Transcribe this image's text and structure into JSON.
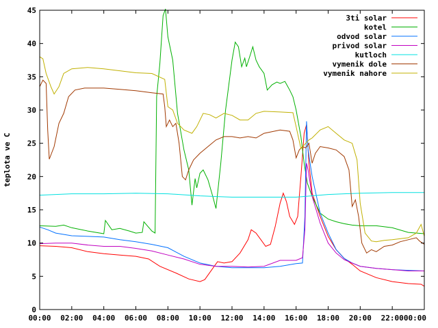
{
  "chart_data": {
    "type": "line",
    "title": "",
    "xlabel": "",
    "ylabel": "teplota ve C",
    "xlim": [
      0,
      24
    ],
    "ylim": [
      0,
      45
    ],
    "x_tick_values": [
      0,
      2,
      4,
      6,
      8,
      10,
      12,
      14,
      16,
      18,
      20,
      22,
      24
    ],
    "x_tick_labels": [
      "00:00",
      "02:00",
      "04:00",
      "06:00",
      "08:00",
      "10:00",
      "12:00",
      "14:00",
      "16:00",
      "18:00",
      "20:00",
      "22:00",
      "00:00"
    ],
    "y_tick_values": [
      0,
      5,
      10,
      15,
      20,
      25,
      30,
      35,
      40,
      45
    ],
    "y_tick_labels": [
      "0",
      "5",
      "10",
      "15",
      "20",
      "25",
      "30",
      "35",
      "40",
      "45"
    ],
    "grid": false,
    "legend_position": "top-right",
    "series": [
      {
        "name": "3ti solar",
        "color": "#ff0000",
        "points": [
          [
            0,
            9.6
          ],
          [
            1,
            9.5
          ],
          [
            2,
            9.3
          ],
          [
            3,
            8.7
          ],
          [
            4,
            8.4
          ],
          [
            5,
            8.2
          ],
          [
            6,
            8.0
          ],
          [
            6.8,
            7.6
          ],
          [
            7.5,
            6.5
          ],
          [
            8.5,
            5.5
          ],
          [
            9.3,
            4.6
          ],
          [
            10,
            4.2
          ],
          [
            10.3,
            4.5
          ],
          [
            10.8,
            6.2
          ],
          [
            11.1,
            7.2
          ],
          [
            11.5,
            7.0
          ],
          [
            12,
            7.2
          ],
          [
            12.5,
            8.5
          ],
          [
            13,
            10.5
          ],
          [
            13.2,
            12.0
          ],
          [
            13.5,
            11.5
          ],
          [
            13.8,
            10.5
          ],
          [
            14.1,
            9.5
          ],
          [
            14.4,
            9.8
          ],
          [
            14.7,
            12.5
          ],
          [
            15,
            16.0
          ],
          [
            15.2,
            17.5
          ],
          [
            15.4,
            16.2
          ],
          [
            15.6,
            14.0
          ],
          [
            15.9,
            12.8
          ],
          [
            16.1,
            14.0
          ],
          [
            16.3,
            20.0
          ],
          [
            16.5,
            26.5
          ],
          [
            16.65,
            27.8
          ],
          [
            16.8,
            22.0
          ],
          [
            17,
            17.5
          ],
          [
            17.5,
            14.0
          ],
          [
            18,
            11.0
          ],
          [
            18.5,
            9.0
          ],
          [
            19,
            7.7
          ],
          [
            19.5,
            6.8
          ],
          [
            20,
            5.8
          ],
          [
            21,
            4.8
          ],
          [
            22,
            4.2
          ],
          [
            23,
            3.9
          ],
          [
            23.8,
            3.8
          ],
          [
            24,
            3.5
          ]
        ]
      },
      {
        "name": "kotel",
        "color": "#00b000",
        "points": [
          [
            0,
            12.6
          ],
          [
            1,
            12.5
          ],
          [
            1.5,
            12.7
          ],
          [
            2,
            12.3
          ],
          [
            3,
            11.8
          ],
          [
            4,
            11.4
          ],
          [
            4.1,
            13.4
          ],
          [
            4.5,
            12.0
          ],
          [
            5,
            12.2
          ],
          [
            5.6,
            11.8
          ],
          [
            6,
            11.5
          ],
          [
            6.4,
            11.6
          ],
          [
            6.5,
            13.2
          ],
          [
            7,
            11.8
          ],
          [
            7.2,
            11.5
          ],
          [
            7.3,
            32.0
          ],
          [
            7.5,
            37.0
          ],
          [
            7.7,
            44.2
          ],
          [
            7.85,
            45.2
          ],
          [
            8,
            41.0
          ],
          [
            8.3,
            37.5
          ],
          [
            8.6,
            29.5
          ],
          [
            9,
            24.0
          ],
          [
            9.3,
            21.0
          ],
          [
            9.5,
            15.7
          ],
          [
            9.7,
            19.7
          ],
          [
            9.8,
            18.3
          ],
          [
            10,
            20.5
          ],
          [
            10.2,
            21.0
          ],
          [
            10.5,
            19.5
          ],
          [
            10.8,
            17.0
          ],
          [
            11,
            15.2
          ],
          [
            11.3,
            22.0
          ],
          [
            11.6,
            30.0
          ],
          [
            12,
            37.5
          ],
          [
            12.2,
            40.2
          ],
          [
            12.4,
            39.5
          ],
          [
            12.6,
            36.5
          ],
          [
            12.8,
            37.8
          ],
          [
            12.9,
            36.5
          ],
          [
            13.1,
            38.0
          ],
          [
            13.3,
            39.5
          ],
          [
            13.5,
            37.5
          ],
          [
            13.7,
            36.5
          ],
          [
            14,
            35.5
          ],
          [
            14.2,
            33.0
          ],
          [
            14.5,
            33.8
          ],
          [
            14.8,
            34.2
          ],
          [
            15,
            34.0
          ],
          [
            15.3,
            34.3
          ],
          [
            15.6,
            33.0
          ],
          [
            15.8,
            32.0
          ],
          [
            16,
            30.0
          ],
          [
            16.3,
            26.0
          ],
          [
            16.5,
            22.0
          ],
          [
            16.7,
            19.0
          ],
          [
            17,
            17.0
          ],
          [
            17.5,
            14.5
          ],
          [
            18,
            13.6
          ],
          [
            18.5,
            13.2
          ],
          [
            19,
            12.9
          ],
          [
            19.5,
            12.7
          ],
          [
            20,
            12.6
          ],
          [
            21,
            12.6
          ],
          [
            22,
            12.3
          ],
          [
            23,
            11.6
          ],
          [
            24,
            11.4
          ]
        ]
      },
      {
        "name": "odvod solar",
        "color": "#0070ff",
        "points": [
          [
            0,
            12.4
          ],
          [
            0.5,
            12.0
          ],
          [
            1,
            11.5
          ],
          [
            2,
            11.1
          ],
          [
            3,
            11.0
          ],
          [
            4,
            10.9
          ],
          [
            5,
            10.5
          ],
          [
            6,
            10.2
          ],
          [
            7,
            9.8
          ],
          [
            8,
            9.3
          ],
          [
            9,
            8.0
          ],
          [
            10,
            7.0
          ],
          [
            11,
            6.5
          ],
          [
            12,
            6.3
          ],
          [
            13,
            6.3
          ],
          [
            14,
            6.3
          ],
          [
            15,
            6.5
          ],
          [
            16,
            6.9
          ],
          [
            16.4,
            7.0
          ],
          [
            16.55,
            14.0
          ],
          [
            16.65,
            28.3
          ],
          [
            16.75,
            24.0
          ],
          [
            17,
            20.0
          ],
          [
            17.5,
            14.5
          ],
          [
            18,
            11.5
          ],
          [
            18.5,
            9.0
          ],
          [
            19,
            7.7
          ],
          [
            19.5,
            7.0
          ],
          [
            20,
            6.5
          ],
          [
            21,
            6.2
          ],
          [
            22,
            6.0
          ],
          [
            23,
            5.9
          ],
          [
            24,
            5.8
          ]
        ]
      },
      {
        "name": "privod solar",
        "color": "#c000c0",
        "points": [
          [
            0,
            9.9
          ],
          [
            1,
            10.0
          ],
          [
            2,
            10.0
          ],
          [
            3,
            9.7
          ],
          [
            4,
            9.5
          ],
          [
            5,
            9.5
          ],
          [
            6,
            9.2
          ],
          [
            7,
            8.8
          ],
          [
            8,
            8.2
          ],
          [
            9,
            7.6
          ],
          [
            10,
            6.8
          ],
          [
            11,
            6.5
          ],
          [
            12,
            6.5
          ],
          [
            13,
            6.4
          ],
          [
            14,
            6.5
          ],
          [
            15,
            7.4
          ],
          [
            16,
            7.4
          ],
          [
            16.4,
            7.8
          ],
          [
            16.55,
            12.0
          ],
          [
            16.65,
            22.0
          ],
          [
            16.75,
            21.0
          ],
          [
            17,
            17.0
          ],
          [
            17.5,
            13.0
          ],
          [
            18,
            10.0
          ],
          [
            18.5,
            8.5
          ],
          [
            19,
            7.5
          ],
          [
            19.5,
            7.0
          ],
          [
            20,
            6.5
          ],
          [
            21,
            6.2
          ],
          [
            22,
            6.0
          ],
          [
            23,
            5.8
          ],
          [
            24,
            5.8
          ]
        ]
      },
      {
        "name": "kutloch",
        "color": "#00e0e0",
        "points": [
          [
            0,
            17.2
          ],
          [
            2,
            17.4
          ],
          [
            4,
            17.4
          ],
          [
            6,
            17.5
          ],
          [
            8,
            17.4
          ],
          [
            10,
            17.1
          ],
          [
            12,
            16.9
          ],
          [
            14,
            16.9
          ],
          [
            16,
            16.9
          ],
          [
            18,
            17.3
          ],
          [
            20,
            17.5
          ],
          [
            22,
            17.6
          ],
          [
            24,
            17.6
          ]
        ]
      },
      {
        "name": "vymenik dole",
        "color": "#a03800",
        "points": [
          [
            0,
            33.5
          ],
          [
            0.2,
            34.5
          ],
          [
            0.4,
            34.0
          ],
          [
            0.5,
            27.0
          ],
          [
            0.6,
            22.6
          ],
          [
            0.9,
            24.5
          ],
          [
            1.2,
            28.0
          ],
          [
            1.5,
            29.5
          ],
          [
            1.8,
            32.0
          ],
          [
            2.2,
            33.0
          ],
          [
            2.8,
            33.3
          ],
          [
            4,
            33.3
          ],
          [
            5,
            33.1
          ],
          [
            6,
            32.9
          ],
          [
            7,
            32.6
          ],
          [
            7.7,
            32.4
          ],
          [
            7.8,
            30.5
          ],
          [
            7.9,
            27.5
          ],
          [
            8.1,
            28.5
          ],
          [
            8.3,
            27.5
          ],
          [
            8.5,
            28.0
          ],
          [
            8.7,
            25.0
          ],
          [
            8.9,
            20.0
          ],
          [
            9.1,
            19.5
          ],
          [
            9.3,
            21.0
          ],
          [
            9.6,
            22.5
          ],
          [
            10,
            23.5
          ],
          [
            10.5,
            24.5
          ],
          [
            11,
            25.5
          ],
          [
            11.5,
            26.0
          ],
          [
            12,
            26.0
          ],
          [
            12.5,
            25.8
          ],
          [
            13,
            26.0
          ],
          [
            13.5,
            25.8
          ],
          [
            14,
            26.5
          ],
          [
            15,
            27.0
          ],
          [
            15.6,
            26.8
          ],
          [
            15.8,
            25.5
          ],
          [
            16,
            22.8
          ],
          [
            16.2,
            24.0
          ],
          [
            16.4,
            24.5
          ],
          [
            16.6,
            24.3
          ],
          [
            16.8,
            25.0
          ],
          [
            17,
            22.0
          ],
          [
            17.2,
            23.5
          ],
          [
            17.5,
            24.5
          ],
          [
            18,
            24.3
          ],
          [
            18.5,
            24.0
          ],
          [
            19,
            23.0
          ],
          [
            19.3,
            21.0
          ],
          [
            19.5,
            15.5
          ],
          [
            19.7,
            16.5
          ],
          [
            19.9,
            14.0
          ],
          [
            20.1,
            10.0
          ],
          [
            20.4,
            8.5
          ],
          [
            20.7,
            9.0
          ],
          [
            21,
            8.7
          ],
          [
            21.5,
            9.5
          ],
          [
            22,
            9.7
          ],
          [
            22.5,
            10.2
          ],
          [
            23,
            10.5
          ],
          [
            23.5,
            10.8
          ],
          [
            23.7,
            10.3
          ],
          [
            24,
            9.8
          ]
        ]
      },
      {
        "name": "vymenik nahore",
        "color": "#c0b000",
        "points": [
          [
            0,
            38.0
          ],
          [
            0.2,
            37.7
          ],
          [
            0.4,
            35.5
          ],
          [
            0.7,
            33.5
          ],
          [
            0.9,
            32.4
          ],
          [
            1.2,
            33.5
          ],
          [
            1.5,
            35.5
          ],
          [
            2,
            36.2
          ],
          [
            3,
            36.4
          ],
          [
            4,
            36.2
          ],
          [
            5,
            35.9
          ],
          [
            6,
            35.6
          ],
          [
            7,
            35.5
          ],
          [
            7.8,
            34.6
          ],
          [
            8,
            30.5
          ],
          [
            8.3,
            30.0
          ],
          [
            8.6,
            28.0
          ],
          [
            9,
            27.0
          ],
          [
            9.5,
            26.5
          ],
          [
            9.8,
            27.5
          ],
          [
            10.2,
            29.5
          ],
          [
            10.6,
            29.3
          ],
          [
            11,
            28.8
          ],
          [
            11.5,
            29.5
          ],
          [
            12,
            29.2
          ],
          [
            12.5,
            28.5
          ],
          [
            13,
            28.5
          ],
          [
            13.5,
            29.5
          ],
          [
            14,
            29.8
          ],
          [
            15,
            29.7
          ],
          [
            15.8,
            29.6
          ],
          [
            16,
            27.5
          ],
          [
            16.3,
            24.2
          ],
          [
            16.6,
            25.0
          ],
          [
            16.8,
            25.5
          ],
          [
            17,
            25.8
          ],
          [
            17.5,
            27.0
          ],
          [
            18,
            27.5
          ],
          [
            18.5,
            26.5
          ],
          [
            19,
            25.5
          ],
          [
            19.5,
            25.0
          ],
          [
            19.8,
            22.5
          ],
          [
            20,
            16.0
          ],
          [
            20.3,
            11.5
          ],
          [
            20.7,
            10.3
          ],
          [
            21,
            10.2
          ],
          [
            21.5,
            10.4
          ],
          [
            22,
            10.5
          ],
          [
            23,
            10.8
          ],
          [
            23.5,
            11.5
          ],
          [
            23.8,
            12.8
          ],
          [
            24,
            11.0
          ]
        ]
      }
    ]
  }
}
